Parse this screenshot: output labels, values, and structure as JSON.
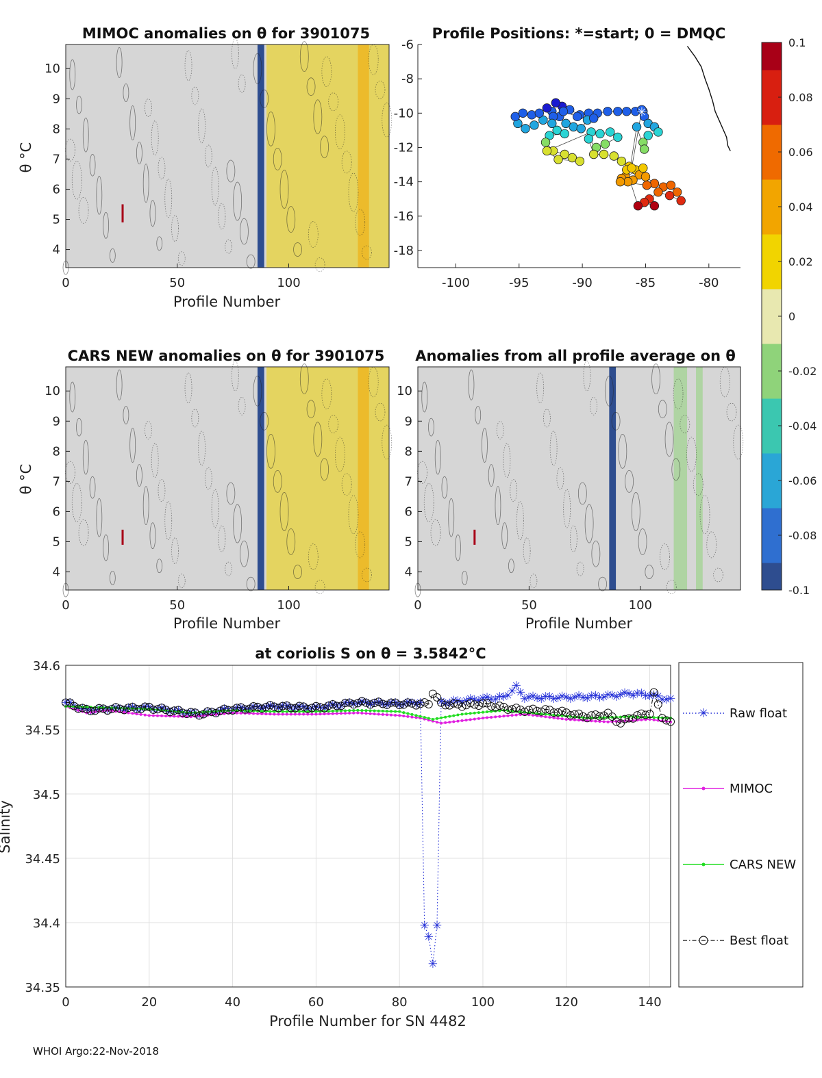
{
  "footer": "WHOI Argo:22-Nov-2018",
  "colorbar": {
    "ticks": [
      "0.1",
      "0.08",
      "0.06",
      "0.04",
      "0.02",
      "0",
      "-0.02",
      "-0.04",
      "-0.06",
      "-0.08",
      "-0.1"
    ],
    "colors": [
      "#2e4d8f",
      "#2f6fd0",
      "#2aa6d6",
      "#3bc7b0",
      "#8fd37a",
      "#e8e8b0",
      "#f1d400",
      "#f2a500",
      "#ef6a00",
      "#d81f10",
      "#a80017"
    ]
  },
  "chart_data": [
    {
      "type": "heatmap",
      "title": "MIMOC anomalies on θ  for 3901075",
      "xlabel": "Profile Number",
      "ylabel": "θ °C",
      "xticks": [
        "0",
        "50",
        "100"
      ],
      "yticks": [
        "10",
        "9",
        "8",
        "7",
        "6",
        "5",
        "4"
      ],
      "xlim": [
        0,
        145
      ],
      "ylim": [
        3.4,
        10.8
      ],
      "bands": [
        {
          "x0": 86,
          "x1": 89,
          "value": -0.1
        },
        {
          "x0": 90,
          "x1": 145,
          "value": 0.02
        },
        {
          "x0": 131,
          "x1": 136,
          "value": 0.035
        }
      ],
      "spots": [
        {
          "x": 25.5,
          "y0": 4.9,
          "y1": 5.5,
          "value": 0.1
        }
      ]
    },
    {
      "type": "scatter",
      "title": "Profile Positions: *=start; 0 = DMQC",
      "xticks": [
        "-100",
        "-95",
        "-90",
        "-85",
        "-80"
      ],
      "yticks": [
        "-6",
        "-8",
        "-10",
        "-12",
        "-14",
        "-16",
        "-18"
      ],
      "xlim": [
        -103,
        -77.5
      ],
      "ylim": [
        -19,
        -6
      ],
      "points": [
        [
          -85.2,
          -9.9
        ],
        [
          -85.8,
          -9.9
        ],
        [
          -86.5,
          -9.9
        ],
        [
          -87.2,
          -9.9
        ],
        [
          -88,
          -9.9
        ],
        [
          -88.8,
          -10
        ],
        [
          -89.5,
          -10
        ],
        [
          -90.2,
          -10.1
        ],
        [
          -91,
          -9.8
        ],
        [
          -91.6,
          -9.6
        ],
        [
          -92.1,
          -9.4
        ],
        [
          -92.4,
          -9.9
        ],
        [
          -91.8,
          -10.2
        ],
        [
          -91.3,
          -10.6
        ],
        [
          -90.7,
          -10.8
        ],
        [
          -90.1,
          -10.9
        ],
        [
          -89.6,
          -10.4
        ],
        [
          -89.1,
          -10.3
        ],
        [
          -90.4,
          -10.2
        ],
        [
          -91.5,
          -9.9
        ],
        [
          -92.3,
          -10.2
        ],
        [
          -93.1,
          -10.4
        ],
        [
          -93.8,
          -10.7
        ],
        [
          -94.5,
          -10.9
        ],
        [
          -95.1,
          -10.6
        ],
        [
          -95.3,
          -10.2
        ],
        [
          -94.7,
          -10
        ],
        [
          -94,
          -10.1
        ],
        [
          -93.4,
          -10
        ],
        [
          -92.8,
          -9.7
        ],
        [
          -92.4,
          -10.6
        ],
        [
          -92,
          -11
        ],
        [
          -91.4,
          -11.2
        ],
        [
          -92.6,
          -11.3
        ],
        [
          -92.9,
          -11.7
        ],
        [
          -92.3,
          -12.2
        ],
        [
          -91.4,
          -12.4
        ],
        [
          -90.8,
          -12.6
        ],
        [
          -90.2,
          -12.8
        ],
        [
          -91.9,
          -12.7
        ],
        [
          -92.8,
          -12.2
        ],
        [
          -89.3,
          -11.1
        ],
        [
          -88.6,
          -11.2
        ],
        [
          -87.8,
          -11.1
        ],
        [
          -87.2,
          -11.4
        ],
        [
          -88.2,
          -11.8
        ],
        [
          -88.9,
          -12
        ],
        [
          -89.5,
          -11.5
        ],
        [
          -89.1,
          -12.4
        ],
        [
          -88.3,
          -12.4
        ],
        [
          -87.5,
          -12.5
        ],
        [
          -86.9,
          -12.8
        ],
        [
          -86.3,
          -13.1
        ],
        [
          -85.8,
          -13.3
        ],
        [
          -85.5,
          -13.6
        ],
        [
          -86,
          -13.9
        ],
        [
          -86.6,
          -13.7
        ],
        [
          -85.2,
          -13.2
        ],
        [
          -85,
          -13.7
        ],
        [
          -84.3,
          -14.1
        ],
        [
          -83.6,
          -14.3
        ],
        [
          -83,
          -14.2
        ],
        [
          -82.5,
          -14.6
        ],
        [
          -82.2,
          -15.1
        ],
        [
          -83.1,
          -14.8
        ],
        [
          -84,
          -14.6
        ],
        [
          -84.7,
          -15
        ],
        [
          -84.3,
          -15.4
        ],
        [
          -85.1,
          -15.2
        ],
        [
          -85.6,
          -15.4
        ],
        [
          -86.5,
          -13.3
        ],
        [
          -86.9,
          -13.8
        ],
        [
          -86.1,
          -13.2
        ],
        [
          -85.3,
          -9.8
        ],
        [
          -85.1,
          -10.2
        ],
        [
          -84.8,
          -10.6
        ],
        [
          -84.3,
          -10.8
        ],
        [
          -84,
          -11.1
        ],
        [
          -84.8,
          -11.3
        ],
        [
          -85.2,
          -11.7
        ],
        [
          -85.1,
          -12.1
        ],
        [
          -85.7,
          -10.8
        ],
        [
          -86.4,
          -14
        ],
        [
          -87,
          -14
        ],
        [
          -84.9,
          -14.2
        ]
      ],
      "start": [
        -85.3,
        -9.9
      ],
      "track": [
        [
          -81.7,
          -6.1
        ],
        [
          -81.1,
          -6.7
        ],
        [
          -80.6,
          -7.3
        ],
        [
          -80.3,
          -8
        ],
        [
          -80,
          -8.6
        ],
        [
          -79.7,
          -9.3
        ],
        [
          -79.5,
          -9.9
        ],
        [
          -79.2,
          -10.4
        ],
        [
          -78.9,
          -10.9
        ],
        [
          -78.6,
          -11.4
        ],
        [
          -78.5,
          -11.9
        ],
        [
          -78.3,
          -12.2
        ]
      ]
    },
    {
      "type": "heatmap",
      "title": "CARS NEW anomalies on θ for 3901075",
      "xlabel": "Profile Number",
      "ylabel": "θ °C",
      "xticks": [
        "0",
        "50",
        "100"
      ],
      "yticks": [
        "10",
        "9",
        "8",
        "7",
        "6",
        "5",
        "4"
      ],
      "xlim": [
        0,
        145
      ],
      "ylim": [
        3.4,
        10.8
      ],
      "bands": [
        {
          "x0": 86,
          "x1": 89,
          "value": -0.1
        },
        {
          "x0": 90,
          "x1": 145,
          "value": 0.02
        },
        {
          "x0": 131,
          "x1": 136,
          "value": 0.035
        }
      ],
      "spots": [
        {
          "x": 25.5,
          "y0": 4.9,
          "y1": 5.4,
          "value": 0.1
        }
      ]
    },
    {
      "type": "heatmap",
      "title": "Anomalies from all profile average on θ",
      "xlabel": "Profile Number",
      "ylabel": "",
      "xticks": [
        "0",
        "50",
        "100"
      ],
      "yticks": [
        "10",
        "9",
        "8",
        "7",
        "6",
        "5",
        "4"
      ],
      "xlim": [
        0,
        145
      ],
      "ylim": [
        3.4,
        10.8
      ],
      "bands": [
        {
          "x0": 86,
          "x1": 89,
          "value": -0.1
        },
        {
          "x0": 115,
          "x1": 121,
          "value": -0.015
        },
        {
          "x0": 125,
          "x1": 128,
          "value": -0.015
        }
      ],
      "spots": [
        {
          "x": 25.5,
          "y0": 4.9,
          "y1": 5.4,
          "value": 0.1
        }
      ]
    },
    {
      "type": "line",
      "title": "at coriolis S on θ = 3.5842°C",
      "xlabel": "Profile Number for SN 4482",
      "ylabel": "Salinity",
      "xlim": [
        0,
        145
      ],
      "ylim": [
        34.35,
        34.6
      ],
      "xticks": [
        "0",
        "20",
        "40",
        "60",
        "80",
        "100",
        "120",
        "140"
      ],
      "yticks": [
        "34.6",
        "34.55",
        "34.5",
        "34.45",
        "34.4",
        "34.35"
      ],
      "series": [
        {
          "name": "Raw float",
          "color": "#1f2bd6",
          "marker": "star",
          "dash": "dotted",
          "keyframes": [
            [
              0,
              34.571
            ],
            [
              5,
              34.565
            ],
            [
              10,
              34.566
            ],
            [
              20,
              34.567
            ],
            [
              32,
              34.562
            ],
            [
              40,
              34.566
            ],
            [
              50,
              34.568
            ],
            [
              60,
              34.567
            ],
            [
              70,
              34.571
            ],
            [
              80,
              34.57
            ],
            [
              85,
              34.571
            ],
            [
              86,
              34.398
            ],
            [
              87,
              34.389
            ],
            [
              88,
              34.368
            ],
            [
              89,
              34.398
            ],
            [
              90,
              34.571
            ],
            [
              100,
              34.574
            ],
            [
              105,
              34.575
            ],
            [
              108,
              34.583
            ],
            [
              110,
              34.575
            ],
            [
              120,
              34.575
            ],
            [
              130,
              34.576
            ],
            [
              135,
              34.578
            ],
            [
              140,
              34.577
            ],
            [
              145,
              34.573
            ]
          ]
        },
        {
          "name": "MIMOC",
          "color": "#e020e0",
          "marker": "dot",
          "dash": "solid",
          "keyframes": [
            [
              0,
              34.568
            ],
            [
              5,
              34.563
            ],
            [
              10,
              34.565
            ],
            [
              20,
              34.561
            ],
            [
              30,
              34.56
            ],
            [
              40,
              34.563
            ],
            [
              50,
              34.562
            ],
            [
              60,
              34.562
            ],
            [
              70,
              34.563
            ],
            [
              80,
              34.561
            ],
            [
              85,
              34.559
            ],
            [
              90,
              34.555
            ],
            [
              100,
              34.559
            ],
            [
              110,
              34.562
            ],
            [
              120,
              34.558
            ],
            [
              130,
              34.556
            ],
            [
              140,
              34.558
            ],
            [
              145,
              34.556
            ]
          ]
        },
        {
          "name": "CARS NEW",
          "color": "#22dd22",
          "marker": "dot",
          "dash": "solid",
          "keyframes": [
            [
              0,
              34.568
            ],
            [
              10,
              34.567
            ],
            [
              20,
              34.566
            ],
            [
              30,
              34.563
            ],
            [
              40,
              34.565
            ],
            [
              50,
              34.564
            ],
            [
              60,
              34.564
            ],
            [
              70,
              34.565
            ],
            [
              80,
              34.564
            ],
            [
              88,
              34.558
            ],
            [
              95,
              34.562
            ],
            [
              105,
              34.565
            ],
            [
              115,
              34.562
            ],
            [
              125,
              34.559
            ],
            [
              135,
              34.56
            ],
            [
              145,
              34.559
            ]
          ]
        },
        {
          "name": "Best float",
          "color": "#111111",
          "marker": "circle",
          "dash": "dashdot",
          "keyframes": [
            [
              0,
              34.571
            ],
            [
              5,
              34.565
            ],
            [
              10,
              34.566
            ],
            [
              20,
              34.567
            ],
            [
              32,
              34.562
            ],
            [
              40,
              34.566
            ],
            [
              50,
              34.568
            ],
            [
              60,
              34.567
            ],
            [
              70,
              34.571
            ],
            [
              80,
              34.57
            ],
            [
              85,
              34.57
            ],
            [
              87,
              34.57
            ],
            [
              88,
              34.579
            ],
            [
              90,
              34.57
            ],
            [
              95,
              34.569
            ],
            [
              100,
              34.57
            ],
            [
              105,
              34.567
            ],
            [
              110,
              34.565
            ],
            [
              115,
              34.565
            ],
            [
              120,
              34.563
            ],
            [
              125,
              34.56
            ],
            [
              130,
              34.562
            ],
            [
              133,
              34.555
            ],
            [
              135,
              34.559
            ],
            [
              140,
              34.563
            ],
            [
              141,
              34.578
            ],
            [
              143,
              34.56
            ],
            [
              145,
              34.555
            ]
          ]
        }
      ]
    }
  ]
}
